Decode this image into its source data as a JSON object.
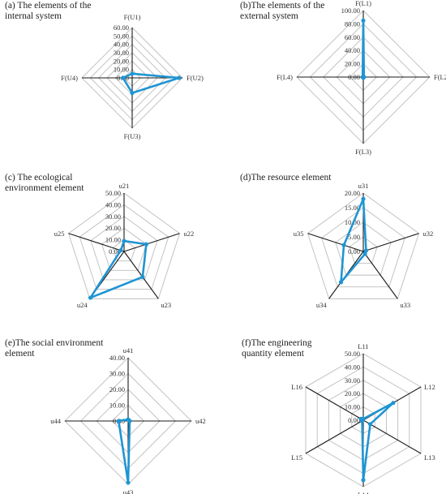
{
  "colors": {
    "series": "#1f95d3",
    "grid": "#bdbdbd",
    "axis": "#1a1a1a",
    "background": "#ffffff"
  },
  "chart_data": [
    {
      "type": "radar",
      "title_lines": [
        "(a) The elements of the",
        "internal system"
      ],
      "axes": [
        "F(U1)",
        "F(U2)",
        "F(U3)",
        "F(U4)"
      ],
      "ticks": [
        "0.00",
        "10.00",
        "20.00",
        "30.00",
        "40.00",
        "50.00",
        "60.00"
      ],
      "rmax": 60,
      "values": [
        5,
        56,
        18,
        11
      ],
      "grid": true
    },
    {
      "type": "radar",
      "title_lines": [
        "(b)The elements of the",
        "external system"
      ],
      "axes": [
        "F(L1)",
        "F(L2)",
        "F(L3)",
        "F(L4)"
      ],
      "ticks": [
        "0.00",
        "20.00",
        "40.00",
        "60.00",
        "80.00",
        "100.00"
      ],
      "rmax": 100,
      "values": [
        85,
        1,
        1,
        1
      ],
      "grid": true
    },
    {
      "type": "radar",
      "title_lines": [
        "(c) The  ecological",
        "environment element"
      ],
      "axes": [
        "u21",
        "u22",
        "u23",
        "u24",
        "u25"
      ],
      "ticks": [
        "0.00",
        "10.00",
        "20.00",
        "30.00",
        "40.00",
        "50.00"
      ],
      "rmax": 50,
      "values": [
        9,
        20,
        27,
        49,
        3
      ],
      "grid": true
    },
    {
      "type": "radar",
      "title_lines": [
        "(d)The resource element"
      ],
      "axes": [
        "u31",
        "u32",
        "u33",
        "u34",
        "u35"
      ],
      "ticks": [
        "0.00",
        "5.00",
        "10.00",
        "15.00",
        "20.00"
      ],
      "rmax": 20,
      "values": [
        18,
        1,
        1,
        13,
        7
      ],
      "grid": true
    },
    {
      "type": "radar",
      "title_lines": [
        "(e)The social environment",
        "element"
      ],
      "axes": [
        "u41",
        "u42",
        "u43",
        "u44"
      ],
      "ticks": [
        "0.00",
        "10.00",
        "20.00",
        "30.00",
        "40.00"
      ],
      "rmax": 40,
      "values": [
        1,
        1,
        39,
        6
      ],
      "grid": true
    },
    {
      "type": "radar",
      "title_lines": [
        "(f)The engineering",
        "quantity element"
      ],
      "axes": [
        "L11",
        "L12",
        "L13",
        "L14",
        "L15",
        "L16"
      ],
      "ticks": [
        "0.00",
        "10.00",
        "20.00",
        "30.00",
        "40.00",
        "50.00"
      ],
      "rmax": 50,
      "values": [
        1,
        26,
        6,
        45,
        1,
        2
      ],
      "grid": true
    }
  ]
}
